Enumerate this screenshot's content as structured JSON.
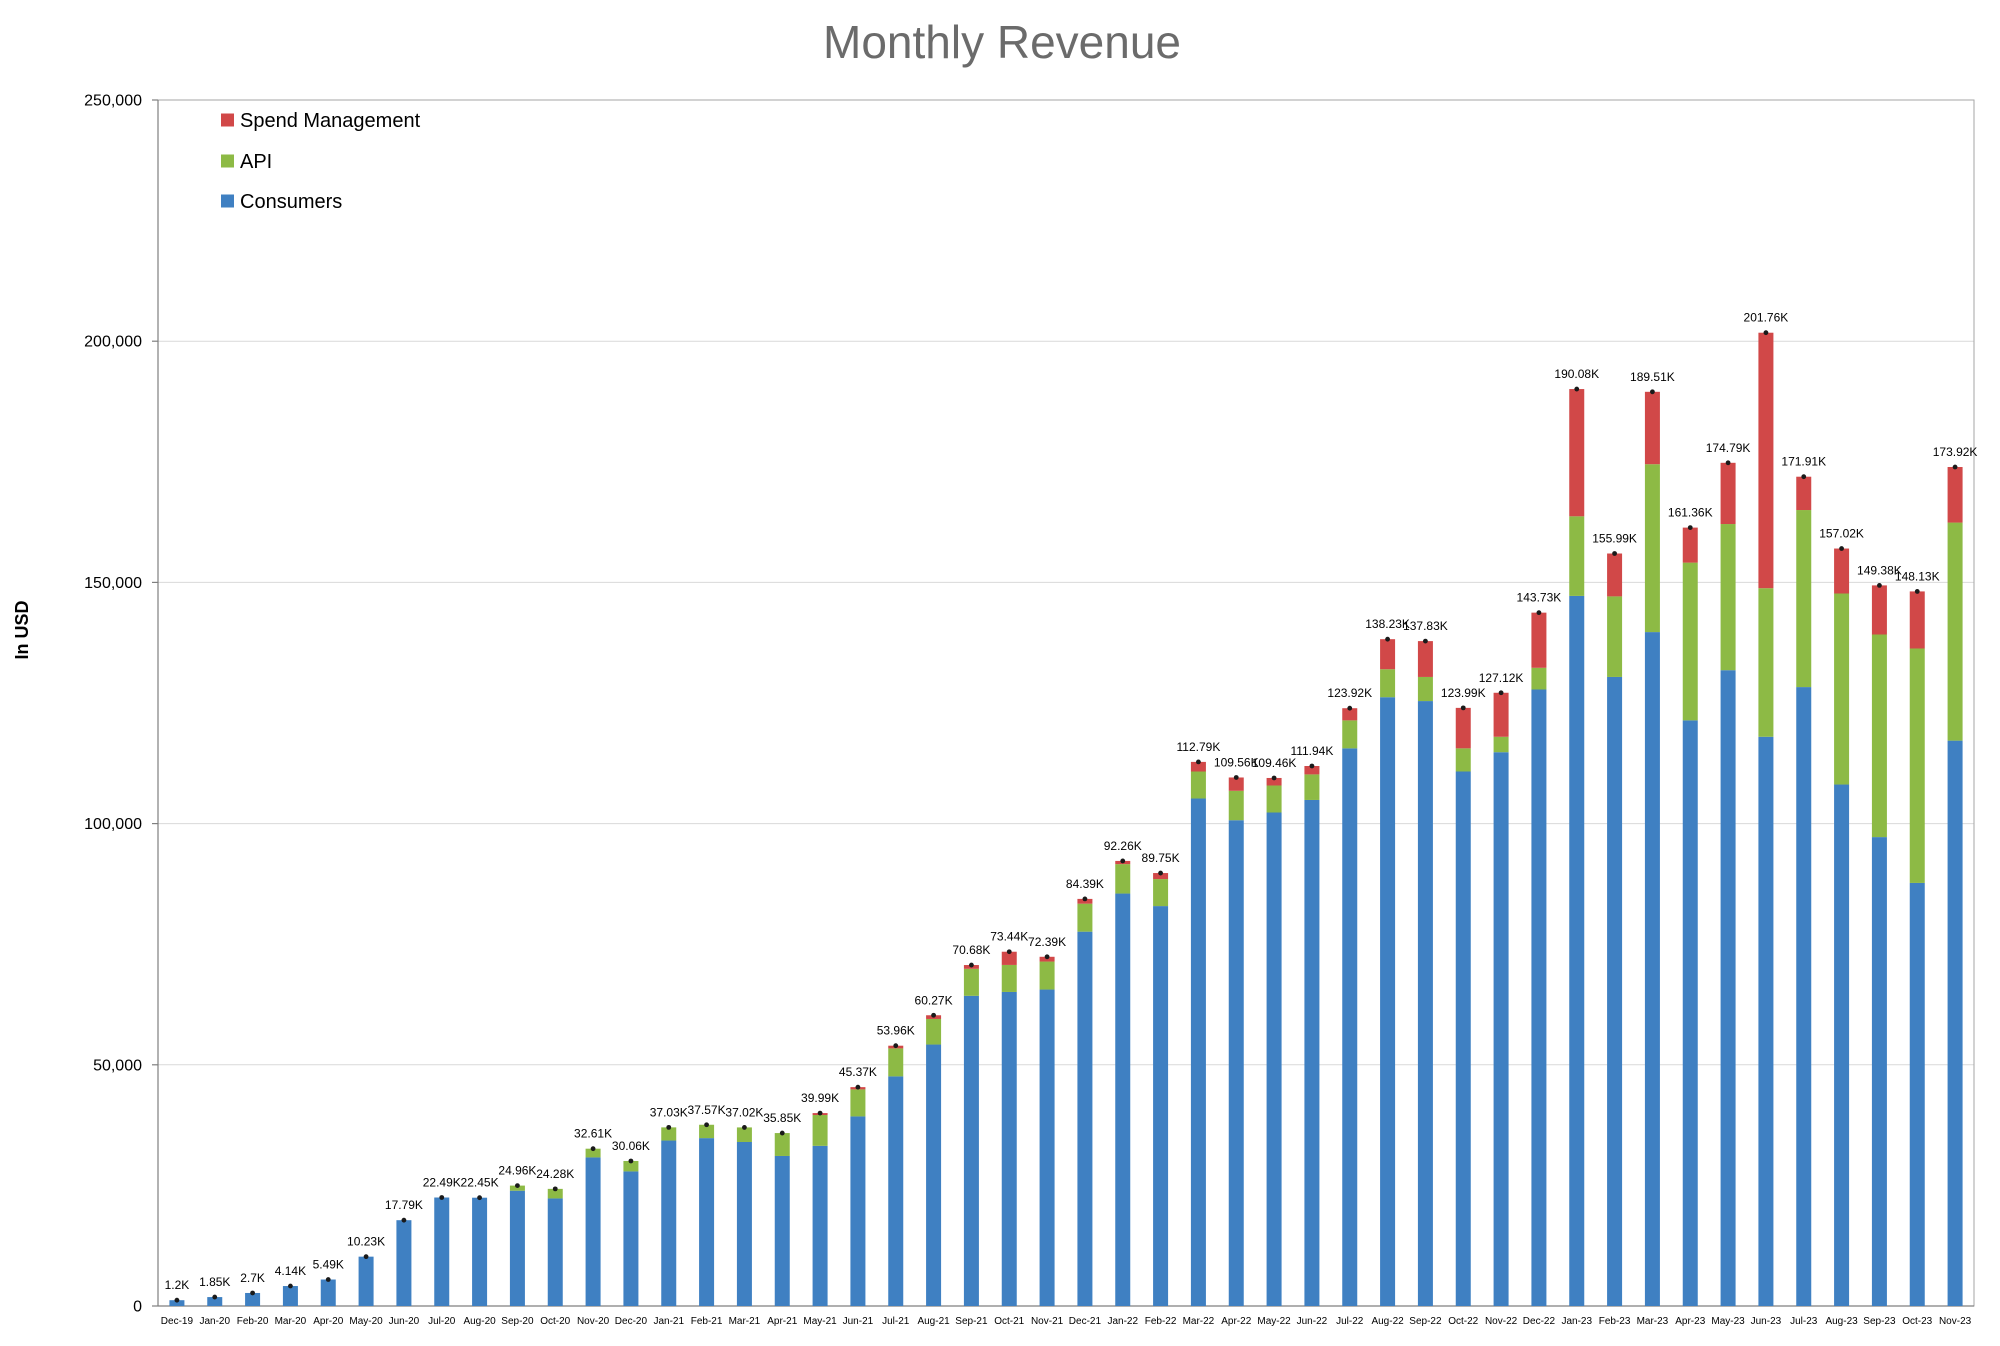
{
  "chart_data": {
    "type": "bar",
    "stacked": true,
    "title": "Monthly Revenue",
    "xlabel": "",
    "ylabel": "In USD",
    "ylim": [
      0,
      250000
    ],
    "yticks": [
      0,
      50000,
      100000,
      150000,
      200000,
      250000
    ],
    "ytick_labels": [
      "0",
      "50,000",
      "100,000",
      "150,000",
      "200,000",
      "250,000"
    ],
    "grid": true,
    "legend": "top-left",
    "categories": [
      "Dec-19",
      "Jan-20",
      "Feb-20",
      "Mar-20",
      "Apr-20",
      "May-20",
      "Jun-20",
      "Jul-20",
      "Aug-20",
      "Sep-20",
      "Oct-20",
      "Nov-20",
      "Dec-20",
      "Jan-21",
      "Feb-21",
      "Mar-21",
      "Apr-21",
      "May-21",
      "Jun-21",
      "Jul-21",
      "Aug-21",
      "Sep-21",
      "Oct-21",
      "Nov-21",
      "Dec-21",
      "Jan-22",
      "Feb-22",
      "Mar-22",
      "Apr-22",
      "May-22",
      "Jun-22",
      "Jul-22",
      "Aug-22",
      "Sep-22",
      "Oct-22",
      "Nov-22",
      "Dec-22",
      "Jan-23",
      "Feb-23",
      "Mar-23",
      "Apr-23",
      "May-23",
      "Jun-23",
      "Jul-23",
      "Aug-23",
      "Sep-23",
      "Oct-23",
      "Nov-23"
    ],
    "series": [
      {
        "name": "Consumers",
        "color": "#3F80C2",
        "values": [
          1200,
          1850,
          2700,
          4140,
          5490,
          10230,
          17790,
          22490,
          22450,
          23900,
          22300,
          30800,
          27900,
          34300,
          34800,
          34000,
          31100,
          33200,
          39300,
          47600,
          54200,
          64300,
          65100,
          65600,
          77600,
          85500,
          82900,
          105200,
          100700,
          102300,
          104900,
          115600,
          126200,
          125400,
          110800,
          114800,
          127800,
          147200,
          130400,
          139700,
          121400,
          131800,
          118000,
          128300,
          108100,
          97200,
          87700,
          117200
        ]
      },
      {
        "name": "API",
        "color": "#8DBA45",
        "values": [
          0,
          0,
          0,
          0,
          0,
          0,
          0,
          0,
          0,
          1060,
          1980,
          1810,
          2160,
          2730,
          2770,
          3020,
          4750,
          6390,
          5600,
          5800,
          5300,
          5600,
          5600,
          5800,
          5800,
          6100,
          5600,
          5600,
          6100,
          5600,
          5300,
          5800,
          5800,
          5000,
          4800,
          3200,
          4500,
          16500,
          16700,
          34800,
          32700,
          30300,
          30800,
          36700,
          39600,
          42000,
          48600,
          45200
        ]
      },
      {
        "name": "Spend Management",
        "color": "#D14848",
        "values": [
          0,
          0,
          0,
          0,
          0,
          0,
          0,
          0,
          0,
          0,
          0,
          0,
          0,
          0,
          0,
          0,
          0,
          400,
          470,
          560,
          770,
          780,
          2740,
          990,
          990,
          660,
          1250,
          1990,
          2760,
          1560,
          1740,
          2520,
          6230,
          7430,
          8390,
          9120,
          11430,
          26380,
          8890,
          15010,
          7260,
          12690,
          52960,
          6910,
          9320,
          10180,
          11830,
          11520
        ]
      }
    ],
    "total_labels": [
      "1.2K",
      "1.85K",
      "2.7K",
      "4.14K",
      "5.49K",
      "10.23K",
      "17.79K",
      "22.49K",
      "22.45K",
      "24.96K",
      "24.28K",
      "32.61K",
      "30.06K",
      "37.03K",
      "37.57K",
      "37.02K",
      "35.85K",
      "39.99K",
      "45.37K",
      "53.96K",
      "60.27K",
      "70.68K",
      "73.44K",
      "72.39K",
      "84.39K",
      "92.26K",
      "89.75K",
      "112.79K",
      "109.56K",
      "109.46K",
      "111.94K",
      "123.92K",
      "138.23K",
      "137.83K",
      "123.99K",
      "127.12K",
      "143.73K",
      "190.08K",
      "155.99K",
      "189.51K",
      "161.36K",
      "174.79K",
      "201.76K",
      "171.91K",
      "157.02K",
      "149.38K",
      "148.13K",
      "173.92K"
    ]
  }
}
